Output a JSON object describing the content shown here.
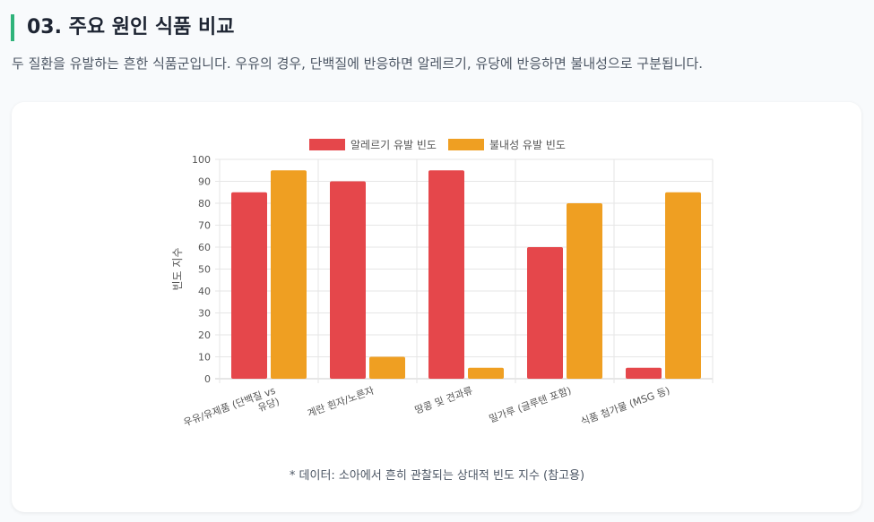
{
  "header": {
    "title": "03. 주요 원인 식품 비교",
    "description": "두 질환을 유발하는 흔한 식품군입니다. 우유의 경우, 단백질에 반응하면 알레르기, 유당에 반응하면 불내성으로 구분됩니다."
  },
  "chart_data": {
    "type": "bar",
    "categories": [
      [
        "우유/유제품 (단백질 vs",
        "유당)"
      ],
      [
        "계란 흰자/노른자"
      ],
      [
        "땅콩 및 견과류"
      ],
      [
        "밀가루 (글루텐 포함)"
      ],
      [
        "식품 첨가물 (MSG 등)"
      ]
    ],
    "series": [
      {
        "name": "알레르기 유발 빈도",
        "color": "#e5474b",
        "values": [
          85,
          90,
          95,
          60,
          5
        ]
      },
      {
        "name": "불내성 유발 빈도",
        "color": "#ef9f22",
        "values": [
          95,
          10,
          5,
          80,
          85
        ]
      }
    ],
    "ylabel": "빈도 지수",
    "ylim": [
      0,
      100
    ],
    "yticks": [
      0,
      10,
      20,
      30,
      40,
      50,
      60,
      70,
      80,
      90,
      100
    ],
    "grid": true,
    "legend": "top"
  },
  "footnote": "* 데이터: 소아에서 흔히 관찰되는 상대적 빈도 지수 (참고용)"
}
